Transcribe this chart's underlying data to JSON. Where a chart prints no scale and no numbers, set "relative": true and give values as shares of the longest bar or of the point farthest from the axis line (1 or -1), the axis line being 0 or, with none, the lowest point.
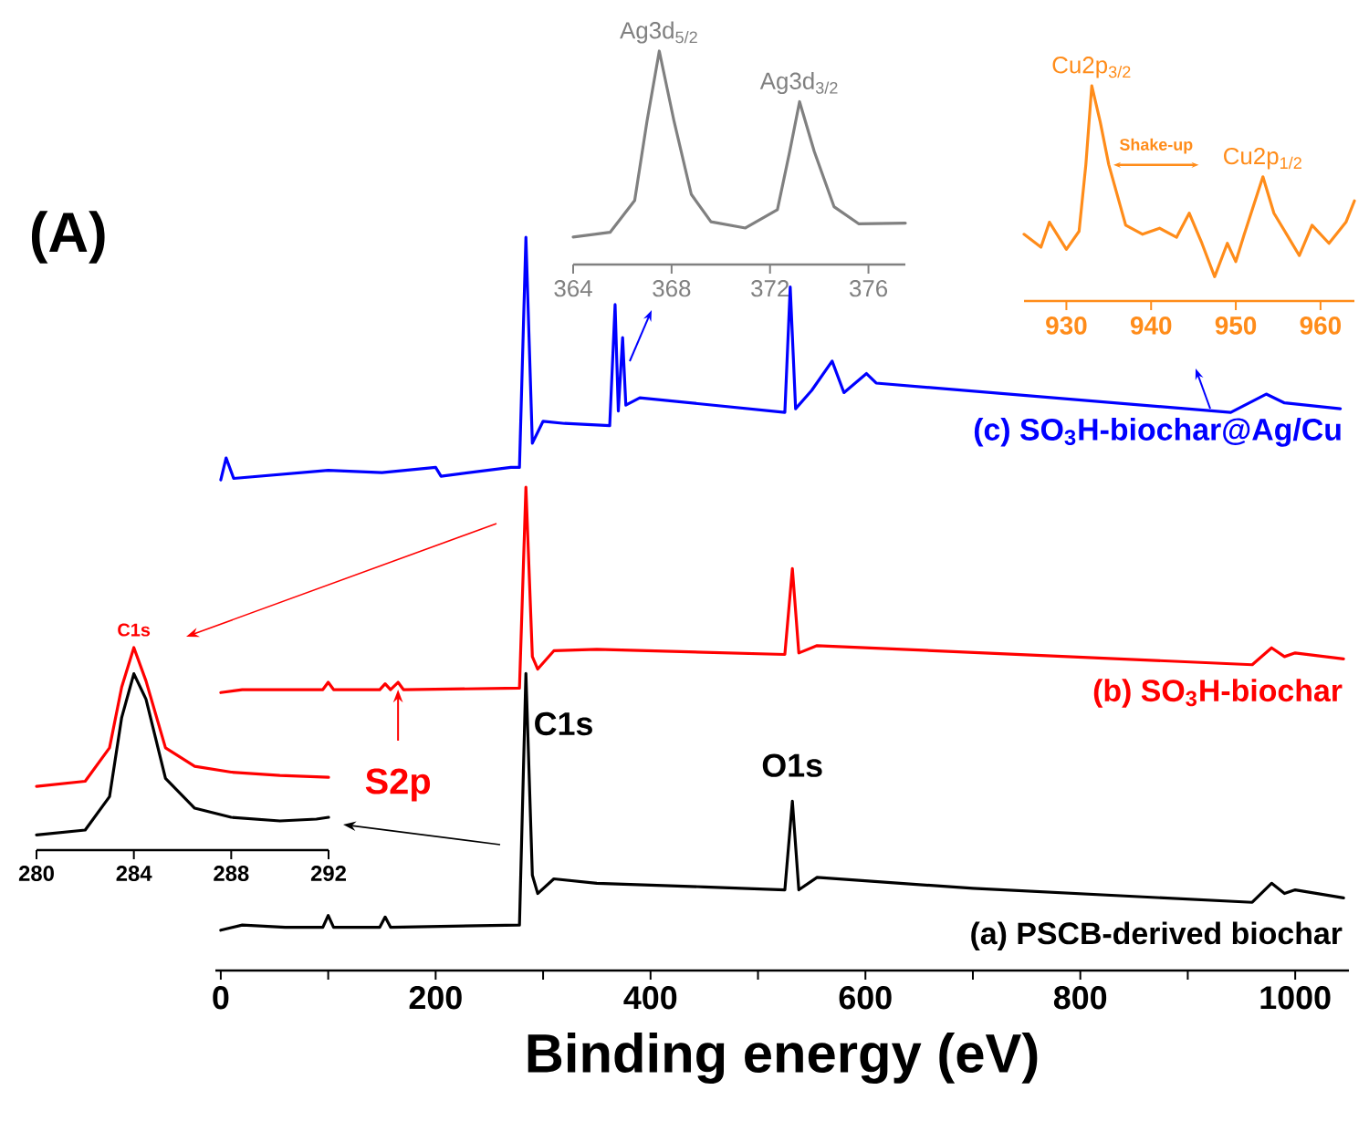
{
  "chart_data": [
    {
      "type": "line",
      "title": "(A)",
      "xlabel": "Binding energy (eV)",
      "relative": true,
      "xlim": [
        -5,
        1050
      ],
      "xticks": [
        0,
        {
          "value": 100,
          "label": null
        },
        200,
        {
          "value": 300,
          "label": null
        },
        400,
        {
          "value": 500,
          "label": null
        },
        600,
        {
          "value": 700,
          "label": null
        },
        800,
        {
          "value": 900,
          "label": null
        },
        1000
      ],
      "tick_labels": "x",
      "annotations": [
        {
          "text": "C1s",
          "x": 284,
          "y": 0.405
        },
        {
          "text": "O1s",
          "x": 532,
          "y": 0.231
        },
        {
          "text": "S2p",
          "x": 165,
          "y": 0.393
        }
      ],
      "series": [
        {
          "name": "(c) SO$_{3}$H-biochar@Ag/Cu",
          "color": "#0000ff",
          "x": [
            0,
            5,
            12,
            100,
            150,
            200,
            205,
            270,
            278,
            284,
            290,
            300,
            320,
            362,
            367,
            370,
            374,
            377,
            390,
            525,
            530,
            535,
            550,
            569,
            580,
            601,
            610,
            940,
            973,
            990,
            1042
          ],
          "values": [
            0.669,
            0.699,
            0.671,
            0.682,
            0.679,
            0.686,
            0.674,
            0.686,
            0.686,
            1.0,
            0.719,
            0.749,
            0.746,
            0.743,
            0.908,
            0.763,
            0.863,
            0.771,
            0.781,
            0.761,
            0.932,
            0.766,
            0.791,
            0.831,
            0.788,
            0.814,
            0.801,
            0.761,
            0.786,
            0.774,
            0.766
          ]
        },
        {
          "name": "(b) SO$_{3}$H-biochar",
          "color": "#ff0000",
          "x": [
            0,
            20,
            95,
            100,
            105,
            148,
            153,
            158,
            165,
            170,
            278,
            284,
            290,
            295,
            310,
            350,
            525,
            532,
            538,
            555,
            960,
            978,
            990,
            1000,
            1045
          ],
          "values": [
            0.379,
            0.383,
            0.383,
            0.393,
            0.383,
            0.383,
            0.391,
            0.383,
            0.393,
            0.383,
            0.385,
            0.659,
            0.428,
            0.411,
            0.436,
            0.438,
            0.431,
            0.548,
            0.433,
            0.443,
            0.417,
            0.44,
            0.428,
            0.433,
            0.425
          ]
        },
        {
          "name": "(a) PSCB-derived biochar",
          "color": "#000000",
          "x": [
            0,
            20,
            60,
            95,
            100,
            105,
            148,
            153,
            158,
            278,
            284,
            290,
            295,
            310,
            350,
            450,
            525,
            532,
            538,
            555,
            700,
            960,
            978,
            990,
            1000,
            1045
          ],
          "values": [
            0.055,
            0.062,
            0.059,
            0.059,
            0.075,
            0.059,
            0.059,
            0.073,
            0.059,
            0.062,
            0.405,
            0.13,
            0.105,
            0.125,
            0.119,
            0.114,
            0.11,
            0.231,
            0.11,
            0.127,
            0.112,
            0.093,
            0.119,
            0.105,
            0.11,
            0.099
          ]
        }
      ]
    },
    {
      "type": "line",
      "relative": true,
      "xlim": [
        364,
        377.5
      ],
      "xticks": [
        364,
        368,
        372,
        376
      ],
      "tick_labels": "x",
      "annotations": [
        {
          "text": "Ag3d$_{5/2}$",
          "x": 367.5,
          "y": 1.0
        },
        {
          "text": "Ag3d$_{3/2}$",
          "x": 373.2,
          "y": 0.763
        }
      ],
      "series": [
        {
          "color": "#808080",
          "x": [
            364,
            365.5,
            366.5,
            367,
            367.5,
            368.1,
            368.8,
            369.6,
            371,
            372.3,
            372.8,
            373.2,
            373.8,
            374.6,
            375.6,
            377.5
          ],
          "values": [
            0.129,
            0.151,
            0.3,
            0.671,
            1.0,
            0.671,
            0.329,
            0.2,
            0.171,
            0.257,
            0.529,
            0.763,
            0.529,
            0.271,
            0.191,
            0.194
          ]
        }
      ]
    },
    {
      "type": "line",
      "relative": true,
      "xlim": [
        925,
        964
      ],
      "xticks": [
        930,
        940,
        950,
        960
      ],
      "tick_labels": "x",
      "annotations": [
        {
          "text": "Cu2p$_{3/2}$",
          "x": 933,
          "y": 1.0
        },
        {
          "text": "Cu2p$_{1/2}$",
          "x": 953.2,
          "y": 0.577
        },
        "Shake-up"
      ],
      "series": [
        {
          "color": "#ff8c1a",
          "x": [
            925,
            927,
            928,
            930,
            931.5,
            932.3,
            933,
            934,
            935,
            936,
            937,
            939,
            941,
            943,
            944.5,
            946,
            947.5,
            949,
            950,
            951,
            952.5,
            953.2,
            954.5,
            956,
            957.5,
            959,
            961,
            963,
            964
          ],
          "values": [
            0.31,
            0.25,
            0.366,
            0.24,
            0.324,
            0.634,
            1.0,
            0.831,
            0.634,
            0.493,
            0.352,
            0.31,
            0.338,
            0.296,
            0.408,
            0.268,
            0.113,
            0.268,
            0.183,
            0.31,
            0.493,
            0.577,
            0.408,
            0.31,
            0.211,
            0.352,
            0.268,
            0.366,
            0.465
          ]
        }
      ]
    },
    {
      "type": "line",
      "relative": true,
      "xlim": [
        280,
        292
      ],
      "xticks": [
        280,
        284,
        288,
        292
      ],
      "tick_labels": "x",
      "annotations": [
        {
          "text": "C1s",
          "x": 284,
          "y": 1.0
        }
      ],
      "series": [
        {
          "color": "#ff0000",
          "x": [
            280,
            282,
            283,
            283.5,
            284,
            284.5,
            285.3,
            286.5,
            288,
            290,
            292
          ],
          "values": [
            0.315,
            0.34,
            0.505,
            0.805,
            1.0,
            0.835,
            0.505,
            0.414,
            0.385,
            0.369,
            0.36
          ]
        },
        {
          "color": "#000000",
          "x": [
            280,
            282,
            283,
            283.5,
            284,
            284.5,
            285.3,
            286.5,
            288,
            290,
            291.5,
            292
          ],
          "values": [
            0.075,
            0.099,
            0.264,
            0.655,
            0.871,
            0.745,
            0.354,
            0.207,
            0.162,
            0.144,
            0.153,
            0.162
          ]
        }
      ]
    }
  ]
}
